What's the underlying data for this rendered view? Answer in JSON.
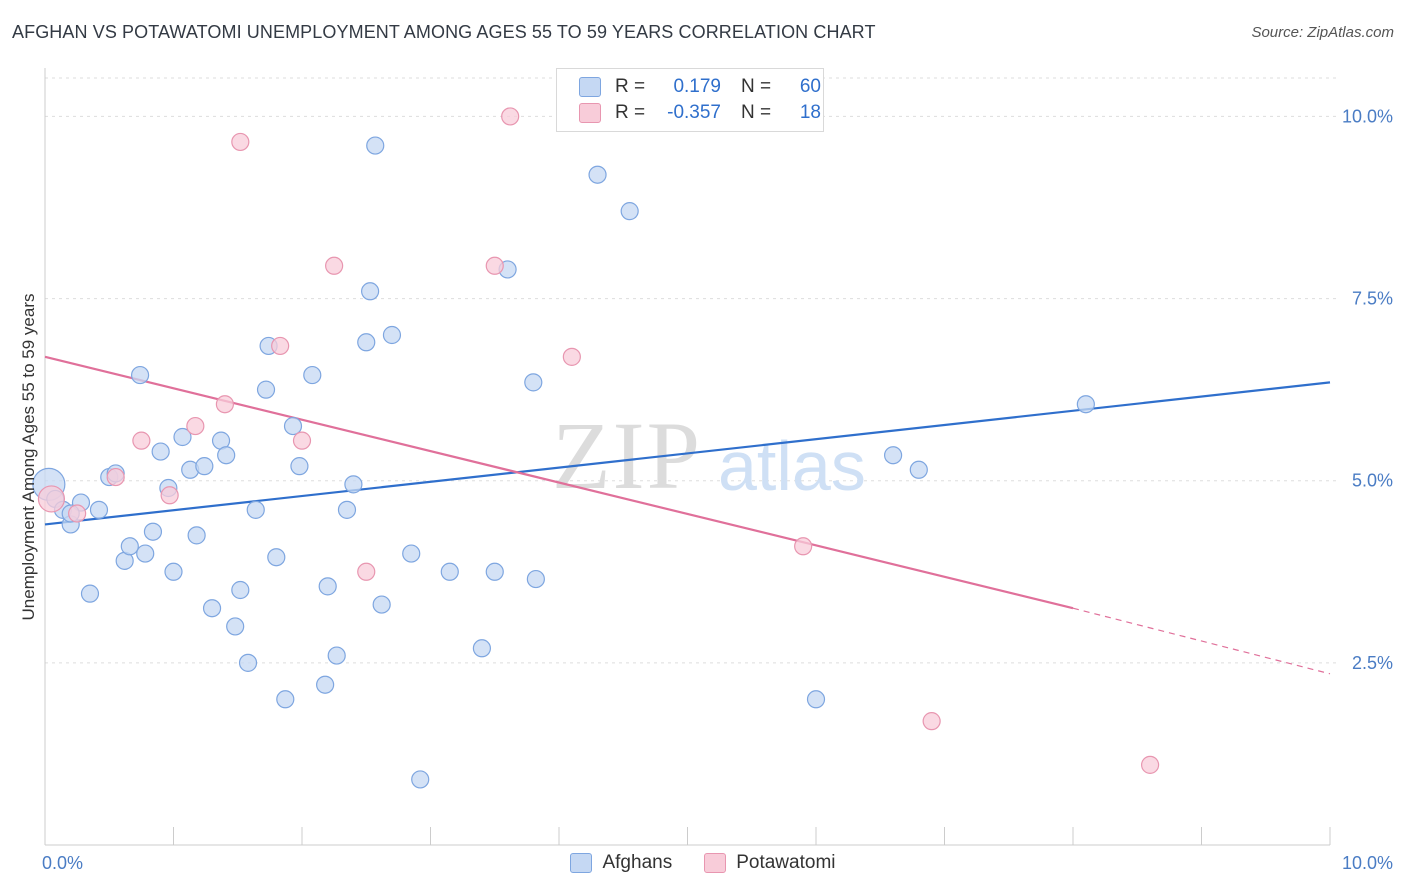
{
  "header": {
    "title": "AFGHAN VS POTAWATOMI UNEMPLOYMENT AMONG AGES 55 TO 59 YEARS CORRELATION CHART",
    "source": "Source: ZipAtlas.com"
  },
  "legend": {
    "rows": [
      {
        "r_label": "R =",
        "r_value": "0.179",
        "n_label": "N =",
        "n_value": "60"
      },
      {
        "r_label": "R =",
        "r_value": "-0.357",
        "n_label": "N =",
        "n_value": "18"
      }
    ],
    "series_names": [
      "Afghans",
      "Potawatomi"
    ]
  },
  "watermark": {
    "zip": "ZIP",
    "atlas": "atlas"
  },
  "colors": {
    "afghan_fill": "#c5d8f3",
    "afghan_stroke": "#7ea6e0",
    "afghan_line": "#2f6fcc",
    "pota_fill": "#f8ccd9",
    "pota_stroke": "#e896b0",
    "pota_line": "#e0709a",
    "axis_text": "#4a7cc4",
    "grid": "#dddddd"
  },
  "chart_data": {
    "type": "scatter",
    "title": "AFGHAN VS POTAWATOMI UNEMPLOYMENT AMONG AGES 55 TO 59 YEARS CORRELATION CHART",
    "xlabel": "",
    "ylabel": "Unemployment Among Ages 55 to 59 years",
    "xlim": [
      0,
      10
    ],
    "ylim": [
      0,
      10.5
    ],
    "x_tick_labels": [
      "0.0%",
      "10.0%"
    ],
    "y_ticks": [
      2.5,
      5.0,
      7.5,
      10.0
    ],
    "y_tick_labels": [
      "2.5%",
      "5.0%",
      "7.5%",
      "10.0%"
    ],
    "grid": true,
    "series": [
      {
        "name": "Afghans",
        "points": [
          [
            0.03,
            4.95
          ],
          [
            0.08,
            4.75
          ],
          [
            0.14,
            4.6
          ],
          [
            0.2,
            4.4
          ],
          [
            0.28,
            4.7
          ],
          [
            0.35,
            3.45
          ],
          [
            0.42,
            4.6
          ],
          [
            0.5,
            5.05
          ],
          [
            0.55,
            5.1
          ],
          [
            0.62,
            3.9
          ],
          [
            0.66,
            4.1
          ],
          [
            0.74,
            6.45
          ],
          [
            0.78,
            4.0
          ],
          [
            0.84,
            4.3
          ],
          [
            0.9,
            5.4
          ],
          [
            0.96,
            4.9
          ],
          [
            1.0,
            3.75
          ],
          [
            1.07,
            5.6
          ],
          [
            1.13,
            5.15
          ],
          [
            1.18,
            4.25
          ],
          [
            1.24,
            5.2
          ],
          [
            1.3,
            3.25
          ],
          [
            1.37,
            5.55
          ],
          [
            1.41,
            5.35
          ],
          [
            1.48,
            3.0
          ],
          [
            1.52,
            3.5
          ],
          [
            1.58,
            2.5
          ],
          [
            1.64,
            4.6
          ],
          [
            1.72,
            6.25
          ],
          [
            1.74,
            6.85
          ],
          [
            1.8,
            3.95
          ],
          [
            1.87,
            2.0
          ],
          [
            1.93,
            5.75
          ],
          [
            1.98,
            5.2
          ],
          [
            2.08,
            6.45
          ],
          [
            2.18,
            2.2
          ],
          [
            2.2,
            3.55
          ],
          [
            2.27,
            2.6
          ],
          [
            2.35,
            4.6
          ],
          [
            2.4,
            4.95
          ],
          [
            2.5,
            6.9
          ],
          [
            2.53,
            7.6
          ],
          [
            2.57,
            9.6
          ],
          [
            2.62,
            3.3
          ],
          [
            2.7,
            7.0
          ],
          [
            2.85,
            4.0
          ],
          [
            2.92,
            0.9
          ],
          [
            3.15,
            3.75
          ],
          [
            3.4,
            2.7
          ],
          [
            3.5,
            3.75
          ],
          [
            3.6,
            7.9
          ],
          [
            3.8,
            6.35
          ],
          [
            3.82,
            3.65
          ],
          [
            4.3,
            9.2
          ],
          [
            4.55,
            8.7
          ],
          [
            6.0,
            2.0
          ],
          [
            6.6,
            5.35
          ],
          [
            6.8,
            5.15
          ],
          [
            8.1,
            6.05
          ],
          [
            0.2,
            4.55
          ]
        ],
        "trend": {
          "x": [
            0,
            10
          ],
          "y": [
            4.4,
            6.35
          ]
        }
      },
      {
        "name": "Potawatomi",
        "points": [
          [
            0.05,
            4.75
          ],
          [
            0.25,
            4.55
          ],
          [
            0.55,
            5.05
          ],
          [
            0.75,
            5.55
          ],
          [
            0.97,
            4.8
          ],
          [
            1.17,
            5.75
          ],
          [
            1.4,
            6.05
          ],
          [
            1.83,
            6.85
          ],
          [
            2.0,
            5.55
          ],
          [
            2.25,
            7.95
          ],
          [
            2.5,
            3.75
          ],
          [
            3.5,
            7.95
          ],
          [
            3.62,
            10.0
          ],
          [
            1.52,
            9.65
          ],
          [
            4.1,
            6.7
          ],
          [
            5.9,
            4.1
          ],
          [
            6.9,
            1.7
          ],
          [
            8.6,
            1.1
          ]
        ],
        "trend": {
          "x": [
            0,
            8.0
          ],
          "y": [
            6.7,
            3.25
          ],
          "dashed_to": {
            "x": 10,
            "y": 2.35
          }
        }
      }
    ]
  }
}
